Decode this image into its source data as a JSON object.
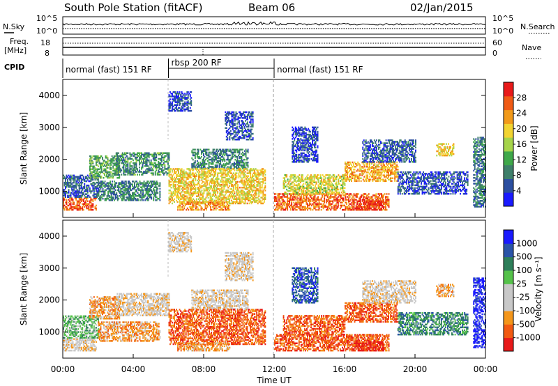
{
  "header": {
    "station": "South Pole Station (fitACF)",
    "beam": "Beam 06",
    "date": "02/Jan/2015"
  },
  "strip": {
    "nsky_label": "N.Sky",
    "nsky_ticks": [
      "10^5",
      "10^0"
    ],
    "nsearch_label": "N.Search",
    "nsearch_ticks": [
      "10^5",
      "10^0"
    ],
    "freq_label": "Freq.",
    "freq_unit": "[MHz]",
    "freq_ticks": [
      "18",
      "8"
    ],
    "nave_label": "Nave",
    "nave_ticks": [
      "60",
      "0"
    ],
    "cpid_label": "CPID",
    "cpid_segments": [
      {
        "label": "normal (fast) 151 RF",
        "start_h": 0,
        "end_h": 6
      },
      {
        "label": "rbsp 200 RF",
        "start_h": 6,
        "end_h": 12
      },
      {
        "label": "normal (fast) 151 RF",
        "start_h": 12,
        "end_h": 24
      }
    ]
  },
  "colors": {
    "power": [
      "#1a1aff",
      "#2c4fa0",
      "#3e7f6a",
      "#3fa84a",
      "#a6d44a",
      "#f2d431",
      "#f29a1a",
      "#f05a14",
      "#e81a1a"
    ],
    "velocity": [
      "#e81a1a",
      "#f25a12",
      "#f4961a",
      "#c8c8c8",
      "#c8c8c8",
      "#55c24a",
      "#2e7f5a",
      "#2a54a8",
      "#1a1aff"
    ]
  },
  "chart_data": [
    {
      "type": "heatmap",
      "name": "power",
      "ylabel": "Slant Range [km]",
      "xlabel": "Time UT",
      "xlim": [
        0,
        24
      ],
      "ylim": [
        180,
        4500
      ],
      "x_ticks": [
        "00:00",
        "04:00",
        "08:00",
        "12:00",
        "16:00",
        "20:00",
        "00:00"
      ],
      "y_ticks": [
        "1000",
        "2000",
        "3000",
        "4000"
      ],
      "colorbar_label": "Power [dB]",
      "colorbar_ticks": [
        "4",
        "8",
        "12",
        "16",
        "20",
        "24",
        "28"
      ],
      "colorbar_range": [
        0,
        32
      ],
      "regions": [
        {
          "t0": 0.0,
          "t1": 1.9,
          "r0": 400,
          "r1": 800,
          "v": 26
        },
        {
          "t0": 0.0,
          "t1": 2.0,
          "r0": 800,
          "r1": 1500,
          "v": 6
        },
        {
          "t0": 1.5,
          "t1": 3.2,
          "r0": 1400,
          "r1": 2100,
          "v": 12
        },
        {
          "t0": 3.0,
          "t1": 6.0,
          "r0": 1500,
          "r1": 2200,
          "v": 10
        },
        {
          "t0": 2.0,
          "t1": 5.5,
          "r0": 700,
          "r1": 1300,
          "v": 9
        },
        {
          "t0": 6.0,
          "t1": 7.3,
          "r0": 3500,
          "r1": 4100,
          "v": 4
        },
        {
          "t0": 7.3,
          "t1": 10.5,
          "r0": 1700,
          "r1": 2300,
          "v": 9
        },
        {
          "t0": 6.0,
          "t1": 11.5,
          "r0": 600,
          "r1": 1700,
          "v": 20
        },
        {
          "t0": 6.5,
          "t1": 9.5,
          "r0": 400,
          "r1": 650,
          "v": 24
        },
        {
          "t0": 9.2,
          "t1": 10.8,
          "r0": 2600,
          "r1": 3500,
          "v": 5
        },
        {
          "t0": 12.0,
          "t1": 18.5,
          "r0": 400,
          "r1": 900,
          "v": 26
        },
        {
          "t0": 12.5,
          "t1": 16.0,
          "r0": 900,
          "r1": 1500,
          "v": 18
        },
        {
          "t0": 13.0,
          "t1": 14.5,
          "r0": 1900,
          "r1": 3000,
          "v": 4
        },
        {
          "t0": 16.5,
          "t1": 18.2,
          "r0": 400,
          "r1": 700,
          "v": 30
        },
        {
          "t0": 16.0,
          "t1": 19.0,
          "r0": 1300,
          "r1": 1900,
          "v": 22
        },
        {
          "t0": 17.0,
          "t1": 20.0,
          "r0": 1900,
          "r1": 2600,
          "v": 6
        },
        {
          "t0": 19.0,
          "t1": 23.0,
          "r0": 900,
          "r1": 1600,
          "v": 5
        },
        {
          "t0": 21.2,
          "t1": 22.2,
          "r0": 2100,
          "r1": 2500,
          "v": 20
        },
        {
          "t0": 23.3,
          "t1": 24.0,
          "r0": 500,
          "r1": 2700,
          "v": 8
        }
      ]
    },
    {
      "type": "heatmap",
      "name": "velocity",
      "ylabel": "Slant Range [km]",
      "xlabel": "Time UT",
      "xlim": [
        0,
        24
      ],
      "ylim": [
        180,
        4500
      ],
      "x_ticks": [
        "00:00",
        "04:00",
        "08:00",
        "12:00",
        "16:00",
        "20:00",
        "00:00"
      ],
      "y_ticks": [
        "1000",
        "2000",
        "3000",
        "4000"
      ],
      "colorbar_label": "Velocity [m s⁻¹]",
      "colorbar_ticks": [
        "1000",
        "500",
        "100",
        "25",
        "-25",
        "-100",
        "-500",
        "-1000"
      ],
      "regions": [
        {
          "t0": 0.0,
          "t1": 1.9,
          "r0": 400,
          "r1": 800,
          "v": 3
        },
        {
          "t0": 0.0,
          "t1": 2.0,
          "r0": 800,
          "r1": 1500,
          "v": 5
        },
        {
          "t0": 1.5,
          "t1": 3.2,
          "r0": 1400,
          "r1": 2100,
          "v": 2
        },
        {
          "t0": 3.0,
          "t1": 6.0,
          "r0": 1500,
          "r1": 2200,
          "v": 3
        },
        {
          "t0": 2.0,
          "t1": 5.5,
          "r0": 700,
          "r1": 1300,
          "v": 2
        },
        {
          "t0": 6.0,
          "t1": 7.3,
          "r0": 3500,
          "r1": 4100,
          "v": 3
        },
        {
          "t0": 7.3,
          "t1": 10.5,
          "r0": 1700,
          "r1": 2300,
          "v": 3
        },
        {
          "t0": 6.0,
          "t1": 11.5,
          "r0": 600,
          "r1": 1700,
          "v": 1
        },
        {
          "t0": 6.5,
          "t1": 9.5,
          "r0": 400,
          "r1": 650,
          "v": 2
        },
        {
          "t0": 9.2,
          "t1": 10.8,
          "r0": 2600,
          "r1": 3500,
          "v": 3
        },
        {
          "t0": 12.0,
          "t1": 18.5,
          "r0": 400,
          "r1": 900,
          "v": 1
        },
        {
          "t0": 12.5,
          "t1": 16.0,
          "r0": 900,
          "r1": 1500,
          "v": 1
        },
        {
          "t0": 13.0,
          "t1": 14.5,
          "r0": 1900,
          "r1": 3000,
          "v": 7
        },
        {
          "t0": 16.5,
          "t1": 18.2,
          "r0": 400,
          "r1": 700,
          "v": 0
        },
        {
          "t0": 16.0,
          "t1": 19.0,
          "r0": 1300,
          "r1": 1900,
          "v": 1
        },
        {
          "t0": 17.0,
          "t1": 20.0,
          "r0": 1900,
          "r1": 2600,
          "v": 3
        },
        {
          "t0": 19.0,
          "t1": 23.0,
          "r0": 900,
          "r1": 1600,
          "v": 6
        },
        {
          "t0": 21.2,
          "t1": 22.2,
          "r0": 2100,
          "r1": 2500,
          "v": 2
        },
        {
          "t0": 23.3,
          "t1": 24.0,
          "r0": 500,
          "r1": 2700,
          "v": 8
        }
      ]
    }
  ]
}
